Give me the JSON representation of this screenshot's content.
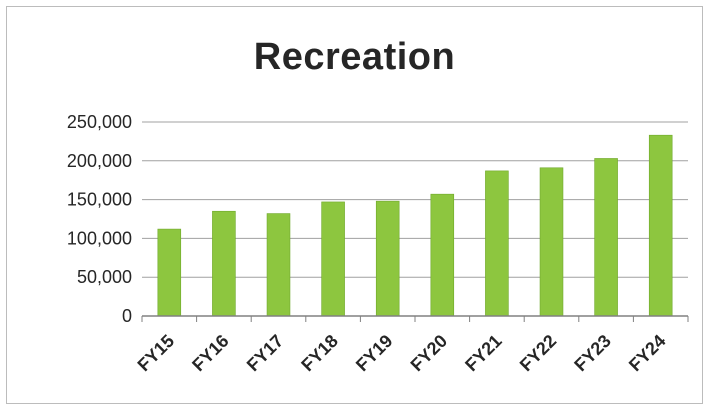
{
  "chart_data": {
    "type": "bar",
    "title": "Recreation",
    "xlabel": "",
    "ylabel": "",
    "categories": [
      "FY15",
      "FY16",
      "FY17",
      "FY18",
      "FY19",
      "FY20",
      "FY21",
      "FY22",
      "FY23",
      "FY24"
    ],
    "values": [
      112000,
      135000,
      132000,
      147000,
      148000,
      157000,
      187000,
      191000,
      203000,
      233000
    ],
    "ylim": [
      0,
      250000
    ],
    "yticks": [
      "0",
      "50,000",
      "100,000",
      "150,000",
      "200,000",
      "250,000"
    ],
    "grid": true,
    "legend": "none",
    "bar_color": "#8dc63f",
    "bar_color_dark": "#6fa82a",
    "grid_color": "#a0a0a0"
  }
}
